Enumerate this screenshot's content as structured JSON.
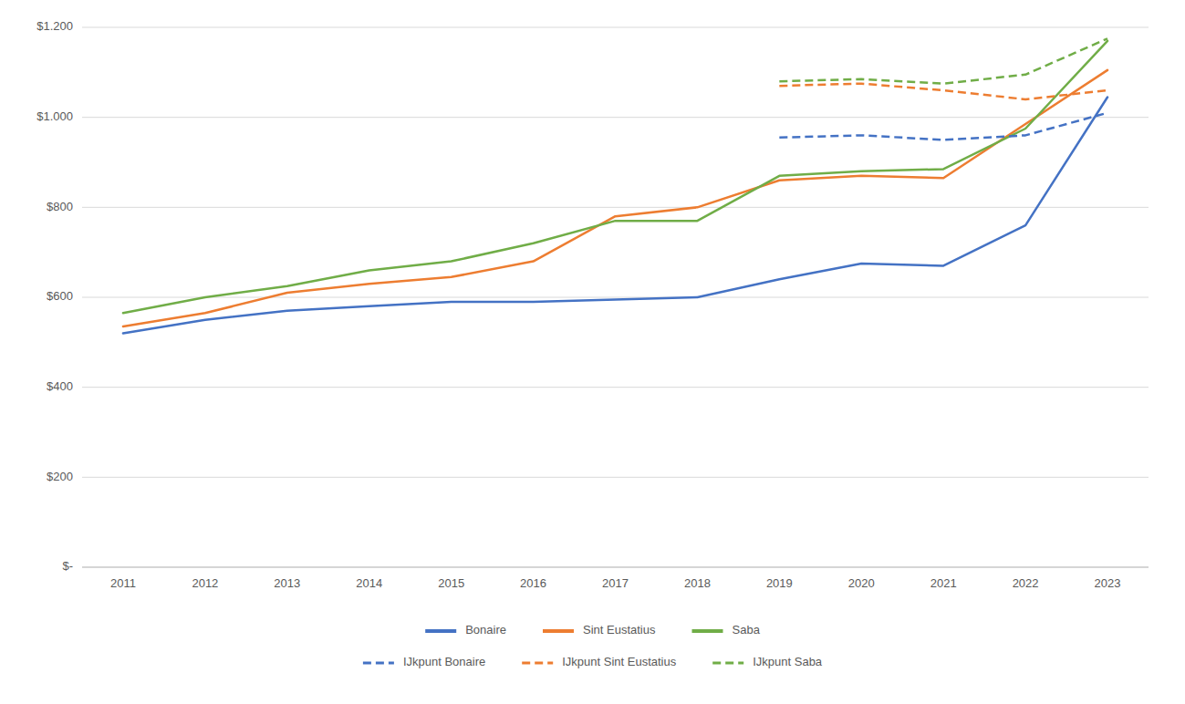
{
  "chart_data": {
    "type": "line",
    "x": [
      2011,
      2012,
      2013,
      2014,
      2015,
      2016,
      2017,
      2018,
      2019,
      2020,
      2021,
      2022,
      2023
    ],
    "xlim": [
      2010.5,
      2023.5
    ],
    "xticks": [
      2011,
      2012,
      2013,
      2014,
      2015,
      2016,
      2017,
      2018,
      2019,
      2020,
      2021,
      2022,
      2023
    ],
    "ylim": [
      0,
      1200
    ],
    "yticks": [
      {
        "value": 0,
        "label": "$-"
      },
      {
        "value": 200,
        "label": "$200"
      },
      {
        "value": 400,
        "label": "$400"
      },
      {
        "value": 600,
        "label": "$600"
      },
      {
        "value": 800,
        "label": "$800"
      },
      {
        "value": 1000,
        "label": "$1.000"
      },
      {
        "value": 1200,
        "label": "$1.200"
      }
    ],
    "grid": "y",
    "legend": "bottom",
    "series": [
      {
        "name": "Bonaire",
        "color": "#4472C4",
        "line_style": "solid",
        "values": [
          520,
          550,
          570,
          580,
          590,
          590,
          595,
          600,
          640,
          675,
          670,
          760,
          1045
        ]
      },
      {
        "name": "Sint Eustatius",
        "color": "#ED7D31",
        "line_style": "solid",
        "values": [
          535,
          565,
          610,
          630,
          645,
          680,
          780,
          800,
          860,
          870,
          865,
          985,
          1105
        ]
      },
      {
        "name": "Saba",
        "color": "#70AD47",
        "line_style": "solid",
        "values": [
          565,
          600,
          625,
          660,
          680,
          720,
          770,
          770,
          870,
          880,
          885,
          975,
          1170
        ]
      },
      {
        "name": "IJkpunt Bonaire",
        "color": "#4472C4",
        "line_style": "dashed",
        "values": [
          null,
          null,
          null,
          null,
          null,
          null,
          null,
          null,
          955,
          960,
          950,
          960,
          1010
        ]
      },
      {
        "name": "IJkpunt Sint Eustatius",
        "color": "#ED7D31",
        "line_style": "dashed",
        "values": [
          null,
          null,
          null,
          null,
          null,
          null,
          null,
          null,
          1070,
          1075,
          1060,
          1040,
          1060
        ]
      },
      {
        "name": "IJkpunt Saba",
        "color": "#70AD47",
        "line_style": "dashed",
        "values": [
          null,
          null,
          null,
          null,
          null,
          null,
          null,
          null,
          1080,
          1085,
          1075,
          1095,
          1175
        ]
      }
    ]
  }
}
